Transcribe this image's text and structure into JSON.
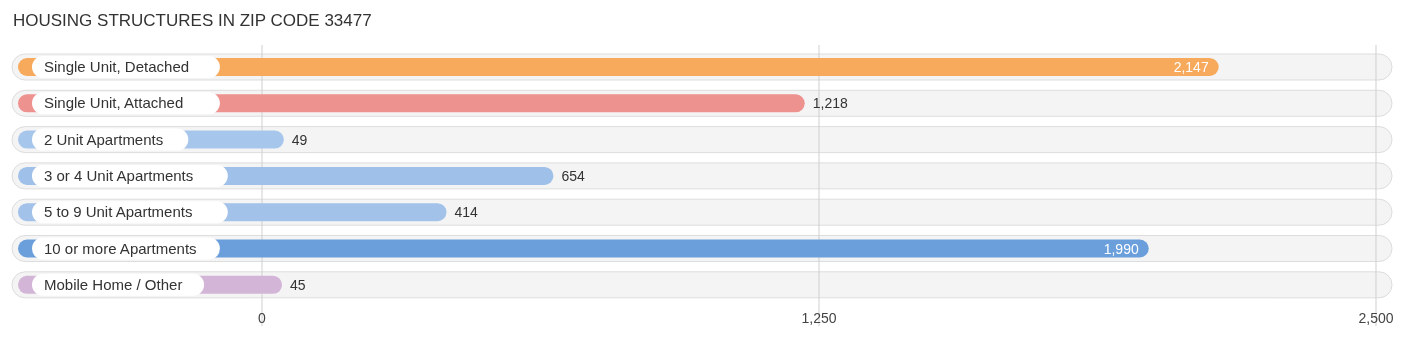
{
  "chart_data": {
    "type": "bar",
    "orientation": "horizontal",
    "title": "HOUSING STRUCTURES IN ZIP CODE 33477",
    "categories": [
      "Single Unit, Detached",
      "Single Unit, Attached",
      "2 Unit Apartments",
      "3 or 4 Unit Apartments",
      "5 to 9 Unit Apartments",
      "10 or more Apartments",
      "Mobile Home / Other"
    ],
    "values": [
      2147,
      1218,
      49,
      654,
      414,
      1990,
      45
    ],
    "colors": [
      "#f7a95c",
      "#ee928f",
      "#a7c6eb",
      "#9fc0e8",
      "#a2c2e9",
      "#6a9fdc",
      "#d3b5d7"
    ],
    "xlim": [
      0,
      2500
    ],
    "xticks": [
      0,
      {
        "value": 1250,
        "label": "1,250"
      },
      {
        "value": 2500,
        "label": "2,500"
      }
    ],
    "value_labels": [
      "2,147",
      "1,218",
      "49",
      "654",
      "414",
      "1,990",
      "45"
    ],
    "grid": "x"
  }
}
